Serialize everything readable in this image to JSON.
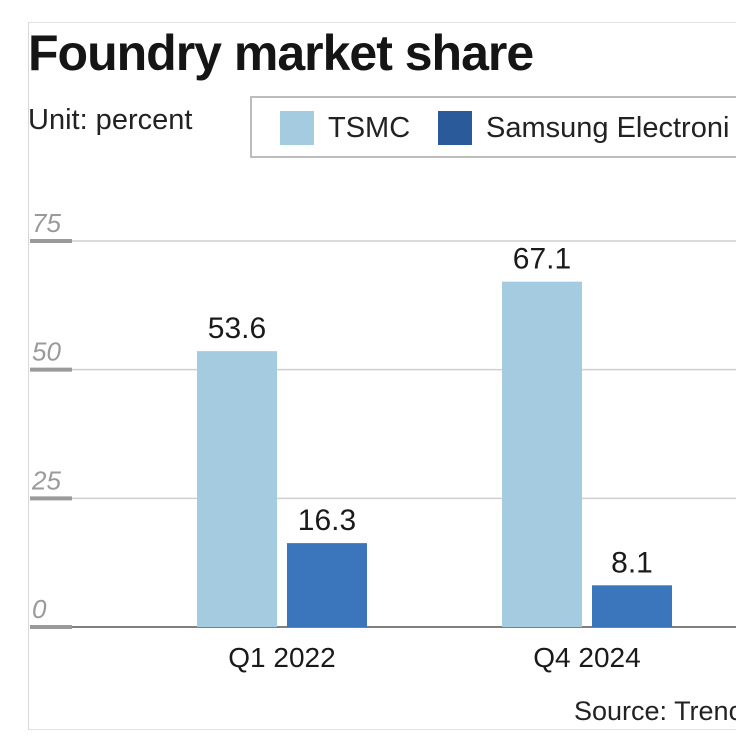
{
  "title": "Foundry market share",
  "unit_label": "Unit: percent",
  "source": "Source: Trenc",
  "chart_data": {
    "type": "bar",
    "title": "Foundry market share",
    "xlabel": "",
    "ylabel": "",
    "ylim": [
      0,
      75
    ],
    "yticks": [
      0,
      25,
      50,
      75
    ],
    "categories": [
      "Q1 2022",
      "Q4 2024"
    ],
    "grid": true,
    "legend_position": "top",
    "series": [
      {
        "name": "TSMC",
        "values": [
          53.6,
          67.1
        ],
        "color": "#a4cbe0"
      },
      {
        "name": "Samsung Electroni",
        "values": [
          16.3,
          8.1
        ],
        "color": "#3b76bc"
      }
    ],
    "data_labels": [
      [
        "53.6",
        "67.1"
      ],
      [
        "16.3",
        "8.1"
      ]
    ],
    "legend_swatch_colors": [
      "#a4cbe0",
      "#2a5a9a"
    ]
  }
}
